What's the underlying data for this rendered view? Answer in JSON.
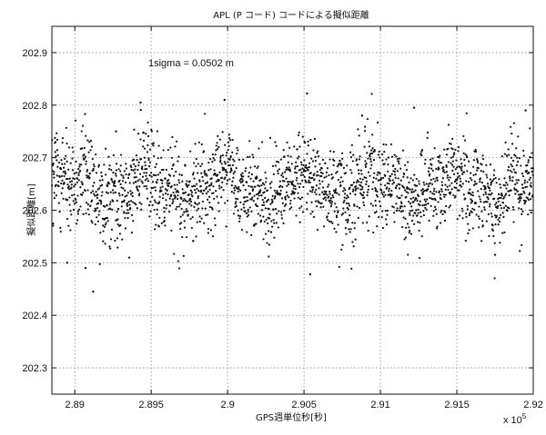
{
  "chart_data": {
    "type": "scatter",
    "title": "APL (P コード) コードによる擬似距離",
    "xlabel": "GPS週単位秒[秒]",
    "ylabel": "擬似距離[m]",
    "x_multiplier": "x 10",
    "x_multiplier_exp": "5",
    "annotation": "1sigma = 0.0502 m",
    "xlim": [
      2.8885,
      2.92
    ],
    "ylim": [
      202.25,
      202.95
    ],
    "x_ticks": [
      "2.89",
      "2.895",
      "2.9",
      "2.905",
      "2.91",
      "2.915",
      "2.92"
    ],
    "y_ticks": [
      "202.3",
      "202.4",
      "202.5",
      "202.6",
      "202.7",
      "202.8",
      "202.9"
    ],
    "x_tick_values": [
      2.89,
      2.895,
      2.9,
      2.905,
      2.91,
      2.915,
      2.92
    ],
    "y_tick_values": [
      202.3,
      202.4,
      202.5,
      202.6,
      202.7,
      202.8,
      202.9
    ],
    "grid": true,
    "series": [
      {
        "marker_color": "#111111",
        "x_start": 2.8885,
        "x_end": 2.92,
        "mean": 202.645,
        "sigma": 0.0502,
        "point_count": 2200,
        "outliers": [
          {
            "x": 2.8912,
            "y": 202.445
          },
          {
            "x": 2.8907,
            "y": 202.49
          },
          {
            "x": 2.8943,
            "y": 202.805
          },
          {
            "x": 2.8998,
            "y": 202.81
          },
          {
            "x": 2.9052,
            "y": 202.822
          },
          {
            "x": 2.9054,
            "y": 202.478
          },
          {
            "x": 2.8927,
            "y": 202.75
          },
          {
            "x": 2.9088,
            "y": 202.78
          },
          {
            "x": 2.9122,
            "y": 202.795
          },
          {
            "x": 2.8895,
            "y": 202.5
          },
          {
            "x": 2.9175,
            "y": 202.515
          },
          {
            "x": 2.9195,
            "y": 202.79
          }
        ]
      }
    ]
  }
}
